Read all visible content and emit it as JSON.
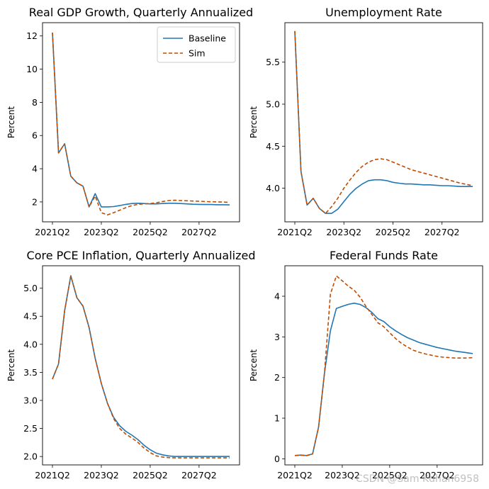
{
  "colors": {
    "baseline": "#1f77b4",
    "sim": "#bf4c00"
  },
  "watermark": "CSDN @Sam Kdhan6958",
  "chart_data": [
    {
      "type": "line",
      "title": "Real GDP Growth, Quarterly Annualized",
      "ylabel": "Percent",
      "xlabel": "",
      "x_ticks": [
        "2021Q2",
        "2023Q2",
        "2025Q2",
        "2027Q2"
      ],
      "x_tick_index": [
        0,
        8,
        16,
        24
      ],
      "ylim": [
        0.8,
        12.8
      ],
      "y_ticks": [
        2,
        4,
        6,
        8,
        10,
        12
      ],
      "legend": {
        "placement": "top-right",
        "entries": [
          "Baseline",
          "Sim"
        ]
      },
      "series": [
        {
          "name": "Baseline",
          "style": "solid",
          "values": [
            12.2,
            4.95,
            5.5,
            3.55,
            3.15,
            2.95,
            1.7,
            2.5,
            1.7,
            1.7,
            1.72,
            1.78,
            1.85,
            1.9,
            1.92,
            1.9,
            1.88,
            1.88,
            1.9,
            1.92,
            1.92,
            1.9,
            1.88,
            1.86,
            1.85,
            1.84,
            1.84,
            1.83,
            1.83,
            1.82
          ]
        },
        {
          "name": "Sim",
          "style": "dashed",
          "values": [
            12.2,
            4.95,
            5.5,
            3.55,
            3.15,
            2.95,
            1.7,
            2.35,
            1.35,
            1.22,
            1.35,
            1.5,
            1.65,
            1.78,
            1.85,
            1.88,
            1.9,
            1.95,
            2.02,
            2.08,
            2.1,
            2.08,
            2.07,
            2.05,
            2.04,
            2.02,
            2.01,
            2.0,
            1.99,
            1.97
          ]
        }
      ]
    },
    {
      "type": "line",
      "title": "Unemployment Rate",
      "ylabel": "Percent",
      "xlabel": "",
      "x_ticks": [
        "2021Q2",
        "2023Q2",
        "2025Q2",
        "2027Q2"
      ],
      "x_tick_index": [
        0,
        8,
        16,
        24
      ],
      "ylim": [
        3.6,
        5.97
      ],
      "y_ticks": [
        4.0,
        4.5,
        5.0,
        5.5
      ],
      "series": [
        {
          "name": "Baseline",
          "style": "solid",
          "values": [
            5.87,
            4.2,
            3.8,
            3.88,
            3.76,
            3.7,
            3.7,
            3.75,
            3.84,
            3.93,
            4.0,
            4.05,
            4.09,
            4.1,
            4.1,
            4.09,
            4.07,
            4.06,
            4.05,
            4.05,
            4.045,
            4.04,
            4.04,
            4.035,
            4.03,
            4.03,
            4.025,
            4.02,
            4.02,
            4.02
          ]
        },
        {
          "name": "Sim",
          "style": "dashed",
          "values": [
            5.87,
            4.2,
            3.8,
            3.88,
            3.76,
            3.7,
            3.78,
            3.88,
            4.0,
            4.1,
            4.19,
            4.26,
            4.31,
            4.34,
            4.35,
            4.34,
            4.31,
            4.28,
            4.25,
            4.22,
            4.2,
            4.18,
            4.16,
            4.14,
            4.12,
            4.1,
            4.08,
            4.06,
            4.045,
            4.03
          ]
        }
      ]
    },
    {
      "type": "line",
      "title": "Core PCE Inflation, Quarterly Annualized",
      "ylabel": "Percent",
      "xlabel": "",
      "x_ticks": [
        "2021Q2",
        "2023Q2",
        "2025Q2",
        "2027Q2"
      ],
      "x_tick_index": [
        0,
        8,
        16,
        24
      ],
      "ylim": [
        1.85,
        5.4
      ],
      "y_ticks": [
        2.0,
        2.5,
        3.0,
        3.5,
        4.0,
        4.5,
        5.0
      ],
      "series": [
        {
          "name": "Baseline",
          "style": "solid",
          "values": [
            3.38,
            3.65,
            4.6,
            5.22,
            4.83,
            4.68,
            4.3,
            3.75,
            3.3,
            2.95,
            2.7,
            2.55,
            2.45,
            2.38,
            2.3,
            2.2,
            2.12,
            2.06,
            2.03,
            2.01,
            2.0,
            2.0,
            2.0,
            2.0,
            2.0,
            2.0,
            2.0,
            2.0,
            2.0,
            2.0
          ]
        },
        {
          "name": "Sim",
          "style": "dashed",
          "values": [
            3.38,
            3.65,
            4.6,
            5.22,
            4.83,
            4.68,
            4.3,
            3.75,
            3.3,
            2.95,
            2.68,
            2.5,
            2.4,
            2.33,
            2.25,
            2.15,
            2.07,
            2.01,
            1.99,
            1.98,
            1.975,
            1.975,
            1.975,
            1.975,
            1.975,
            1.975,
            1.975,
            1.975,
            1.975,
            1.975
          ]
        }
      ]
    },
    {
      "type": "line",
      "title": "Federal Funds Rate",
      "ylabel": "Percent",
      "xlabel": "",
      "x_ticks": [
        "2021Q2",
        "2023Q2",
        "2025Q2",
        "2027Q2"
      ],
      "x_tick_index": [
        0,
        8,
        16,
        24
      ],
      "ylim": [
        -0.15,
        4.75
      ],
      "y_ticks": [
        0,
        1,
        2,
        3,
        4
      ],
      "series": [
        {
          "name": "Baseline",
          "style": "solid",
          "values": [
            0.08,
            0.09,
            0.08,
            0.12,
            0.78,
            2.1,
            3.15,
            3.7,
            3.75,
            3.8,
            3.83,
            3.8,
            3.72,
            3.6,
            3.45,
            3.38,
            3.25,
            3.15,
            3.06,
            2.98,
            2.92,
            2.86,
            2.82,
            2.78,
            2.74,
            2.71,
            2.68,
            2.65,
            2.63,
            2.61,
            2.59
          ]
        },
        {
          "name": "Sim",
          "style": "dashed",
          "values": [
            0.08,
            0.09,
            0.08,
            0.12,
            0.78,
            2.1,
            4.05,
            4.5,
            4.38,
            4.25,
            4.15,
            3.98,
            3.75,
            3.55,
            3.35,
            3.25,
            3.1,
            2.96,
            2.84,
            2.75,
            2.67,
            2.62,
            2.58,
            2.55,
            2.52,
            2.5,
            2.49,
            2.48,
            2.48,
            2.48,
            2.49
          ]
        }
      ]
    }
  ]
}
